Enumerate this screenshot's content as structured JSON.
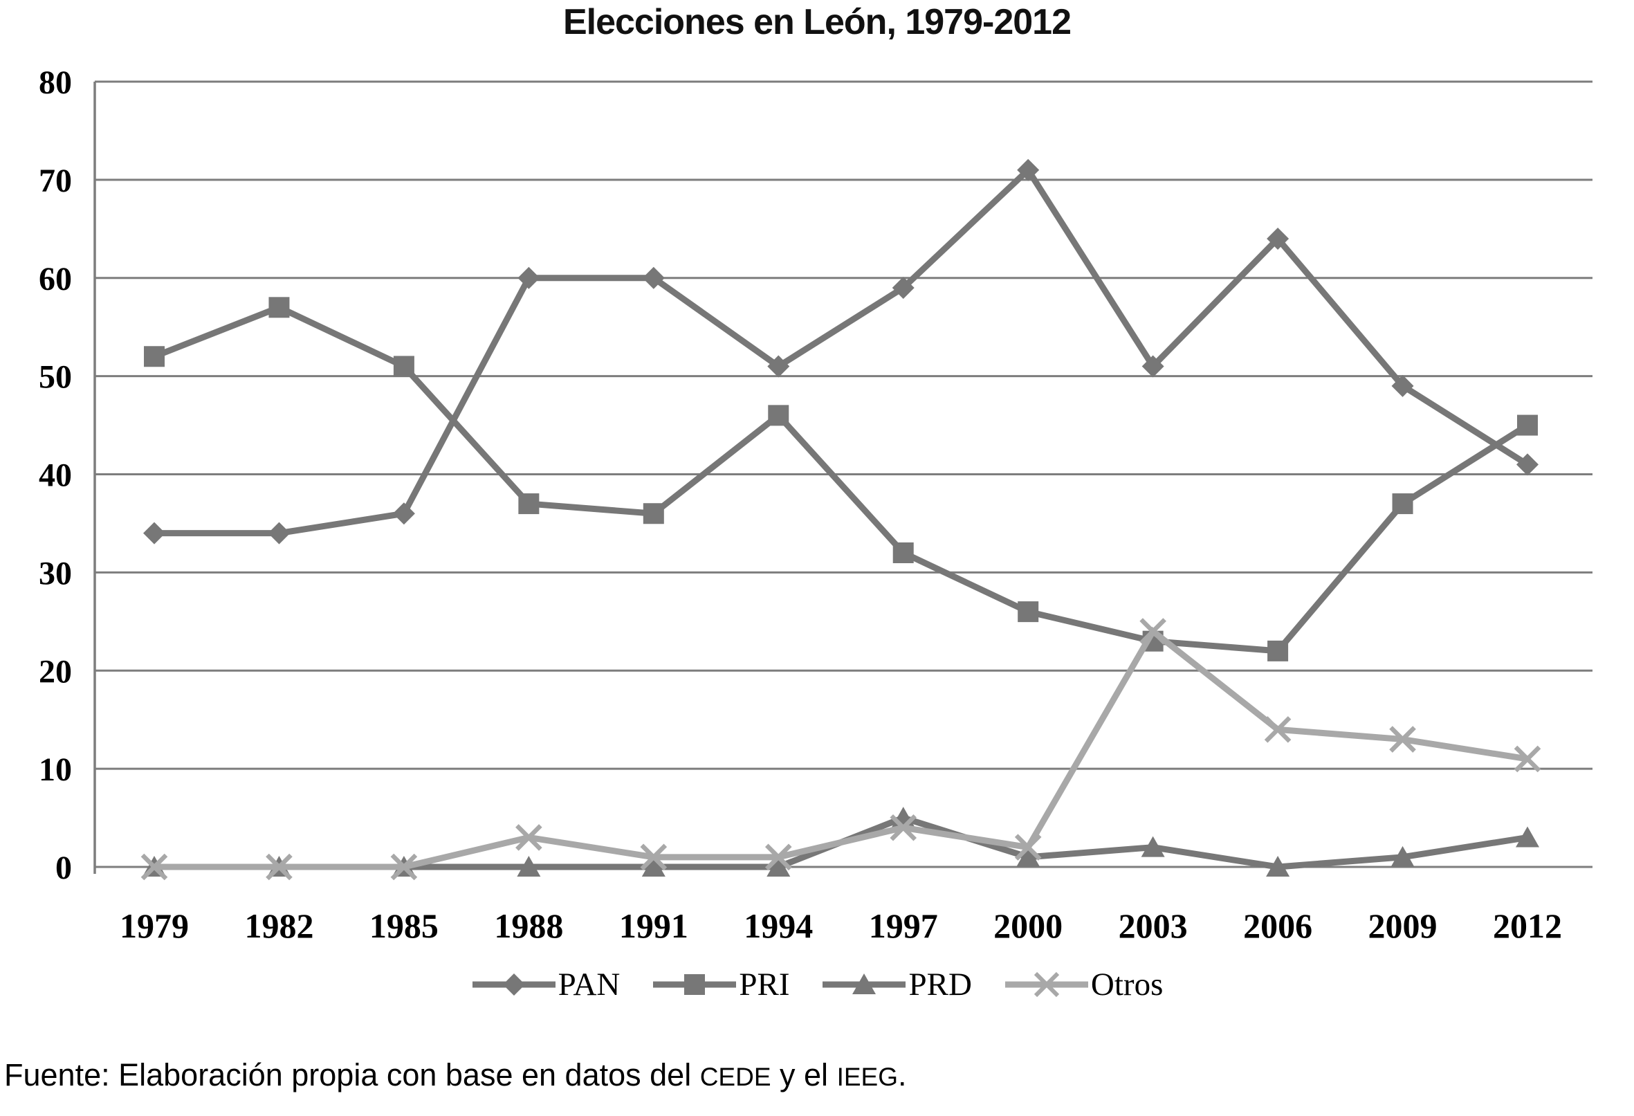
{
  "title": "Elecciones en León, 1979-2012",
  "source_note": {
    "prefix": "Fuente: Elaboración propia con base en datos del ",
    "org1": "CEDE",
    "middle": " y el ",
    "org2": "IEEG",
    "suffix": "."
  },
  "chart_data": {
    "type": "line",
    "title": "Elecciones en León, 1979-2012",
    "categories": [
      "1979",
      "1982",
      "1985",
      "1988",
      "1991",
      "1994",
      "1997",
      "2000",
      "2003",
      "2006",
      "2009",
      "2012"
    ],
    "series": [
      {
        "name": "PAN",
        "marker": "diamond",
        "color": "#777777",
        "values": [
          34,
          34,
          36,
          60,
          60,
          51,
          59,
          71,
          51,
          64,
          49,
          41
        ]
      },
      {
        "name": "PRI",
        "marker": "square",
        "color": "#777777",
        "values": [
          52,
          57,
          51,
          37,
          36,
          46,
          32,
          26,
          23,
          22,
          37,
          45
        ]
      },
      {
        "name": "PRD",
        "marker": "triangle",
        "color": "#777777",
        "values": [
          0,
          0,
          0,
          0,
          0,
          0,
          5,
          1,
          2,
          0,
          1,
          3
        ]
      },
      {
        "name": "Otros",
        "marker": "x",
        "color": "#a8a8a8",
        "values": [
          0,
          0,
          0,
          3,
          1,
          1,
          4,
          2,
          24,
          14,
          13,
          11
        ]
      }
    ],
    "xlabel": "",
    "ylabel": "",
    "ylim": [
      0,
      80
    ],
    "yticks": [
      0,
      10,
      20,
      30,
      40,
      50,
      60,
      70,
      80
    ],
    "grid": true,
    "gridline_color": "#7d7d7d",
    "axis_color": "#7d7d7d",
    "tick_label_color": "#000000",
    "legend_position": "bottom"
  }
}
